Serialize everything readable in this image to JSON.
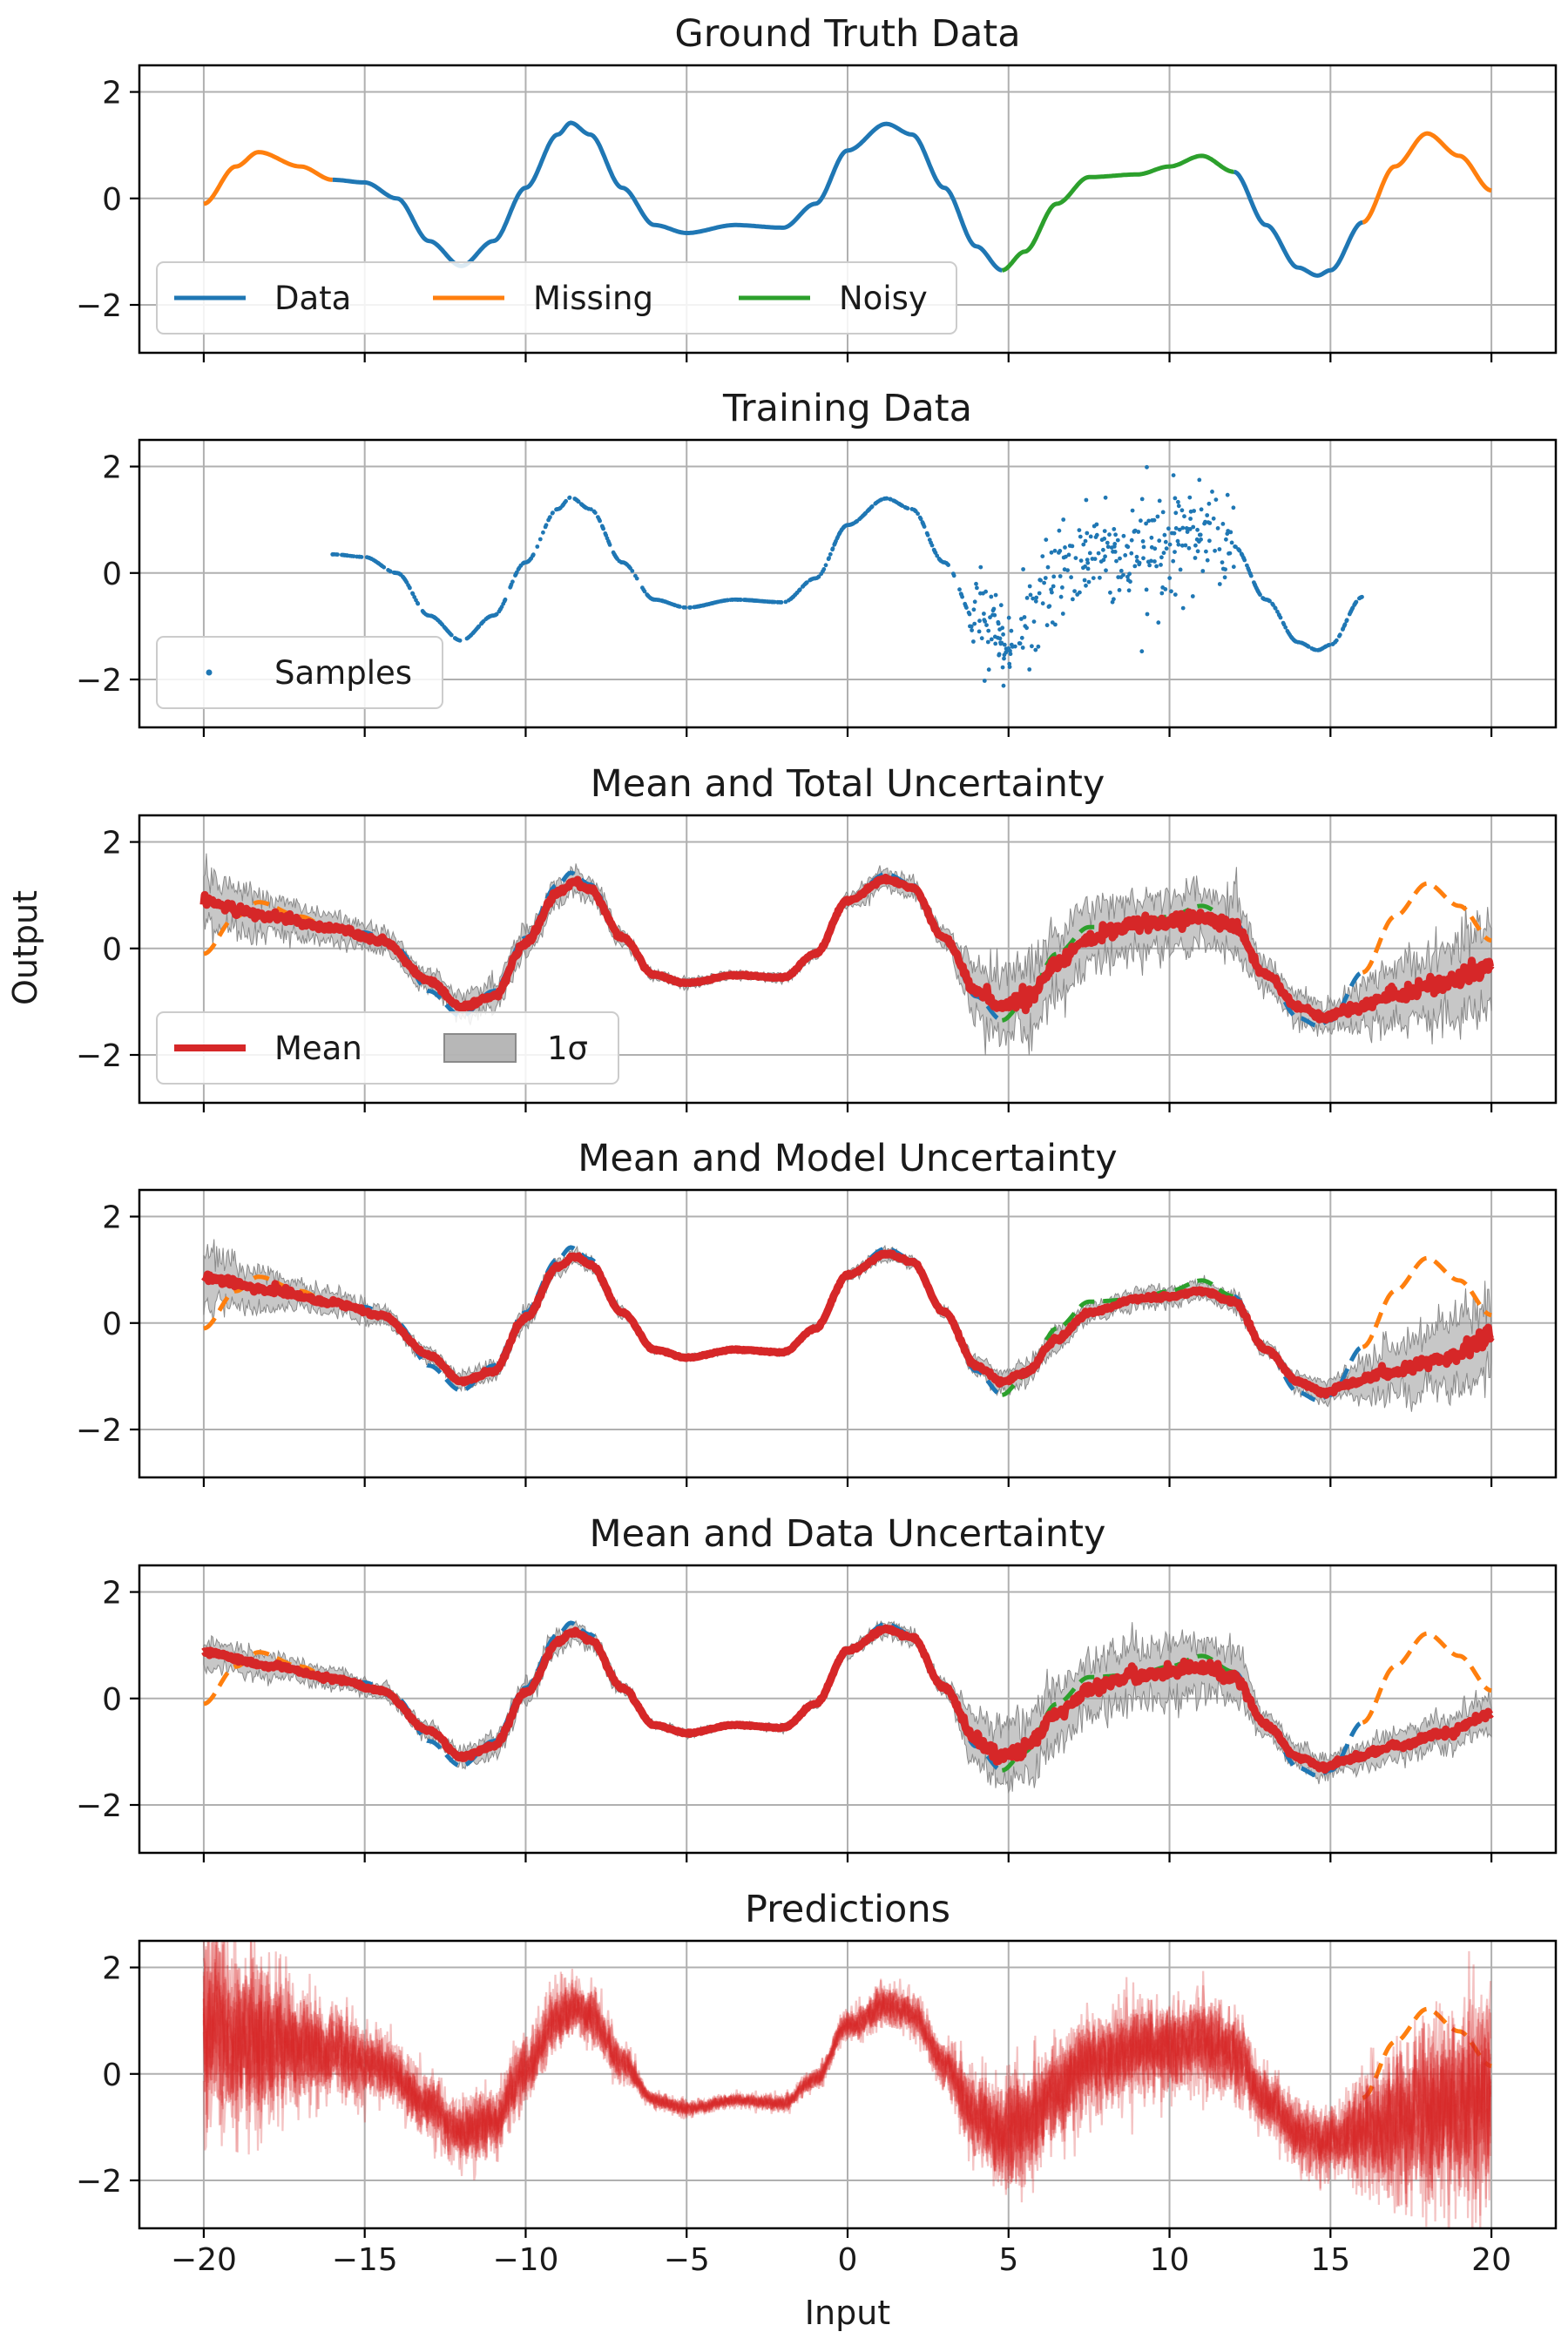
{
  "figure": {
    "xlabel": "Input",
    "ylabel": "Output",
    "xlim": [
      -22,
      22
    ],
    "ylim": [
      -2.9,
      2.5
    ],
    "xticks": [
      -20,
      -15,
      -10,
      -5,
      0,
      5,
      10,
      15,
      20
    ],
    "xtick_labels": [
      "−20",
      "−15",
      "−10",
      "−5",
      "0",
      "5",
      "10",
      "15",
      "20"
    ],
    "yticks": [
      -2,
      0,
      2
    ],
    "ytick_labels": [
      "−2",
      "0",
      "2"
    ],
    "grid": true
  },
  "colors": {
    "data": "#1f77b4",
    "missing": "#ff7f0e",
    "noisy": "#2ca02c",
    "mean": "#d62728",
    "band": "#999999"
  },
  "chart_data": [
    {
      "type": "line",
      "title": "Ground Truth Data",
      "x_range": [
        -20,
        20
      ],
      "series": [
        {
          "name": "Data",
          "x_range": [
            -16,
            16
          ],
          "excluding": [
            4.8,
            12
          ]
        },
        {
          "name": "Missing",
          "x_ranges": [
            [
              -20,
              -16
            ],
            [
              16,
              20
            ]
          ]
        },
        {
          "name": "Noisy",
          "x_range": [
            4.8,
            12
          ]
        }
      ],
      "curve_points": [
        [
          -20,
          -0.1
        ],
        [
          -19,
          0.6
        ],
        [
          -18.3,
          0.87
        ],
        [
          -17,
          0.6
        ],
        [
          -16,
          0.35
        ],
        [
          -15,
          0.3
        ],
        [
          -14,
          0.0
        ],
        [
          -13,
          -0.8
        ],
        [
          -12,
          -1.27
        ],
        [
          -11,
          -0.8
        ],
        [
          -10,
          0.2
        ],
        [
          -9,
          1.2
        ],
        [
          -8.6,
          1.42
        ],
        [
          -8,
          1.2
        ],
        [
          -7,
          0.2
        ],
        [
          -6,
          -0.5
        ],
        [
          -5,
          -0.65
        ],
        [
          -3.5,
          -0.5
        ],
        [
          -2,
          -0.55
        ],
        [
          -1,
          -0.1
        ],
        [
          0,
          0.9
        ],
        [
          1.2,
          1.4
        ],
        [
          2,
          1.2
        ],
        [
          3,
          0.2
        ],
        [
          4,
          -0.9
        ],
        [
          4.8,
          -1.35
        ],
        [
          5.5,
          -1.0
        ],
        [
          6.5,
          -0.1
        ],
        [
          7.5,
          0.4
        ],
        [
          9,
          0.45
        ],
        [
          10,
          0.6
        ],
        [
          11,
          0.8
        ],
        [
          12,
          0.5
        ],
        [
          13,
          -0.5
        ],
        [
          14,
          -1.3
        ],
        [
          14.6,
          -1.45
        ],
        [
          15,
          -1.35
        ],
        [
          16,
          -0.45
        ],
        [
          17,
          0.6
        ],
        [
          18,
          1.22
        ],
        [
          19,
          0.8
        ],
        [
          20,
          0.15
        ]
      ],
      "legend": {
        "labels": [
          "Data",
          "Missing",
          "Noisy"
        ],
        "placement": "lower-left"
      }
    },
    {
      "type": "scatter",
      "title": "Training Data",
      "x_range": [
        -16,
        16
      ],
      "noisy_x_range": [
        3.8,
        12
      ],
      "noisy_y_range": [
        -2.6,
        2.1
      ],
      "legend": {
        "labels": [
          "Samples"
        ],
        "placement": "lower-left"
      }
    },
    {
      "type": "area",
      "title": "Mean and Total Uncertainty",
      "band_label": "1σ",
      "series": [
        {
          "name": "Mean"
        }
      ],
      "mean_points": [
        [
          -20,
          0.85
        ],
        [
          -18,
          0.62
        ],
        [
          -16,
          0.38
        ],
        [
          -14.5,
          0.15
        ],
        [
          -13,
          -0.6
        ],
        [
          -12,
          -1.1
        ],
        [
          -11,
          -0.9
        ],
        [
          -10,
          0.1
        ],
        [
          -9,
          1.05
        ],
        [
          -8.5,
          1.25
        ],
        [
          -8,
          1.1
        ],
        [
          -7,
          0.2
        ],
        [
          -6,
          -0.5
        ],
        [
          -5,
          -0.65
        ],
        [
          -3.5,
          -0.5
        ],
        [
          -2,
          -0.55
        ],
        [
          -1,
          -0.1
        ],
        [
          0,
          0.9
        ],
        [
          1.2,
          1.3
        ],
        [
          2,
          1.15
        ],
        [
          3,
          0.2
        ],
        [
          4,
          -0.8
        ],
        [
          4.8,
          -1.1
        ],
        [
          5.5,
          -0.95
        ],
        [
          6.5,
          -0.3
        ],
        [
          7.5,
          0.2
        ],
        [
          9,
          0.45
        ],
        [
          10,
          0.5
        ],
        [
          11,
          0.6
        ],
        [
          12,
          0.4
        ],
        [
          13,
          -0.5
        ],
        [
          14,
          -1.1
        ],
        [
          14.8,
          -1.3
        ],
        [
          15.5,
          -1.15
        ],
        [
          17,
          -0.9
        ],
        [
          18.5,
          -0.65
        ],
        [
          20,
          -0.3
        ]
      ],
      "sigma_points": [
        [
          -20,
          0.45
        ],
        [
          -16,
          0.25
        ],
        [
          -14,
          0.18
        ],
        [
          -10,
          0.25
        ],
        [
          -8,
          0.2
        ],
        [
          -6,
          0.08
        ],
        [
          -3,
          0.06
        ],
        [
          -1,
          0.08
        ],
        [
          1,
          0.15
        ],
        [
          3,
          0.15
        ],
        [
          4,
          0.45
        ],
        [
          5,
          0.6
        ],
        [
          9,
          0.5
        ],
        [
          12,
          0.5
        ],
        [
          13,
          0.25
        ],
        [
          15,
          0.25
        ],
        [
          17,
          0.5
        ],
        [
          20,
          0.75
        ]
      ],
      "legend": {
        "labels": [
          "Mean",
          "1σ"
        ],
        "placement": "lower-left"
      }
    },
    {
      "type": "area",
      "title": "Mean and Model Uncertainty",
      "sigma_points": [
        [
          -20,
          0.45
        ],
        [
          -16,
          0.2
        ],
        [
          -14,
          0.12
        ],
        [
          -10,
          0.15
        ],
        [
          -8,
          0.12
        ],
        [
          -6,
          0.05
        ],
        [
          -3,
          0.04
        ],
        [
          -1,
          0.06
        ],
        [
          1,
          0.1
        ],
        [
          3,
          0.08
        ],
        [
          4,
          0.15
        ],
        [
          5,
          0.18
        ],
        [
          9,
          0.15
        ],
        [
          12,
          0.15
        ],
        [
          13,
          0.12
        ],
        [
          15,
          0.18
        ],
        [
          17,
          0.45
        ],
        [
          20,
          0.75
        ]
      ]
    },
    {
      "type": "area",
      "title": "Mean and Data Uncertainty",
      "sigma_points": [
        [
          -20,
          0.25
        ],
        [
          -16,
          0.15
        ],
        [
          -14,
          0.12
        ],
        [
          -10,
          0.2
        ],
        [
          -8,
          0.15
        ],
        [
          -6,
          0.06
        ],
        [
          -3,
          0.05
        ],
        [
          -1,
          0.07
        ],
        [
          1,
          0.12
        ],
        [
          3,
          0.12
        ],
        [
          4,
          0.45
        ],
        [
          5,
          0.55
        ],
        [
          9,
          0.5
        ],
        [
          12,
          0.5
        ],
        [
          13,
          0.2
        ],
        [
          15,
          0.18
        ],
        [
          17,
          0.25
        ],
        [
          20,
          0.3
        ]
      ]
    },
    {
      "type": "line",
      "title": "Predictions",
      "spread_points": [
        [
          -20,
          1.2
        ],
        [
          -16,
          0.55
        ],
        [
          -14,
          0.35
        ],
        [
          -10,
          0.4
        ],
        [
          -8,
          0.35
        ],
        [
          -6,
          0.1
        ],
        [
          -3,
          0.08
        ],
        [
          -1,
          0.12
        ],
        [
          1,
          0.25
        ],
        [
          3,
          0.25
        ],
        [
          4,
          0.55
        ],
        [
          5,
          0.65
        ],
        [
          9,
          0.55
        ],
        [
          12,
          0.55
        ],
        [
          13,
          0.4
        ],
        [
          15,
          0.4
        ],
        [
          17,
          0.9
        ],
        [
          20,
          1.3
        ]
      ]
    }
  ]
}
